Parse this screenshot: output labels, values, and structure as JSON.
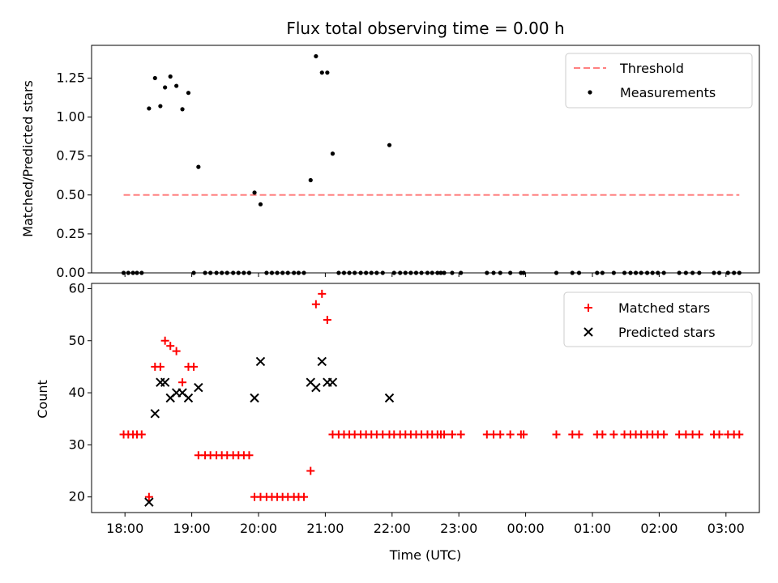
{
  "chart_data": [
    {
      "type": "scatter",
      "title": "Flux total observing time = 0.00 h",
      "xlabel": "",
      "ylabel": "Matched/Predicted stars",
      "xlim": [
        17.5,
        27.5
      ],
      "ylim": [
        0,
        1.46
      ],
      "grid": false,
      "legend_position": "top-right",
      "yticks": [
        "0.00",
        "0.25",
        "0.50",
        "0.75",
        "1.00",
        "1.25"
      ],
      "ytick_values": [
        0,
        0.25,
        0.5,
        0.75,
        1.0,
        1.25
      ],
      "threshold": {
        "name": "Threshold",
        "value": 0.5,
        "x_range": [
          17.98,
          27.2
        ],
        "color": "#ff8080"
      },
      "series": [
        {
          "name": "Measurements",
          "color": "#000000",
          "points": [
            [
              17.98,
              0
            ],
            [
              18.05,
              0
            ],
            [
              18.12,
              0
            ],
            [
              18.18,
              0
            ],
            [
              18.25,
              0
            ],
            [
              18.36,
              1.055
            ],
            [
              18.45,
              1.25
            ],
            [
              18.53,
              1.07
            ],
            [
              18.6,
              1.19
            ],
            [
              18.68,
              1.26
            ],
            [
              18.77,
              1.2
            ],
            [
              18.86,
              1.05
            ],
            [
              18.95,
              1.155
            ],
            [
              19.03,
              0
            ],
            [
              19.1,
              0.68
            ],
            [
              19.2,
              0
            ],
            [
              19.28,
              0
            ],
            [
              19.37,
              0
            ],
            [
              19.45,
              0
            ],
            [
              19.53,
              0
            ],
            [
              19.62,
              0
            ],
            [
              19.7,
              0
            ],
            [
              19.78,
              0
            ],
            [
              19.86,
              0
            ],
            [
              19.94,
              0.515
            ],
            [
              20.03,
              0.44
            ],
            [
              20.12,
              0
            ],
            [
              20.2,
              0
            ],
            [
              20.28,
              0
            ],
            [
              20.36,
              0
            ],
            [
              20.44,
              0
            ],
            [
              20.53,
              0
            ],
            [
              20.6,
              0
            ],
            [
              20.68,
              0
            ],
            [
              20.78,
              0.595
            ],
            [
              20.86,
              1.39
            ],
            [
              20.95,
              1.285
            ],
            [
              21.03,
              1.285
            ],
            [
              21.11,
              0.765
            ],
            [
              21.2,
              0
            ],
            [
              21.28,
              0
            ],
            [
              21.36,
              0
            ],
            [
              21.44,
              0
            ],
            [
              21.53,
              0
            ],
            [
              21.61,
              0
            ],
            [
              21.69,
              0
            ],
            [
              21.77,
              0
            ],
            [
              21.86,
              0
            ],
            [
              21.96,
              0.82
            ],
            [
              22.03,
              0
            ],
            [
              22.12,
              0
            ],
            [
              22.2,
              0
            ],
            [
              22.28,
              0
            ],
            [
              22.36,
              0
            ],
            [
              22.44,
              0
            ],
            [
              22.53,
              0
            ],
            [
              22.6,
              0
            ],
            [
              22.68,
              0
            ],
            [
              22.73,
              0
            ],
            [
              22.78,
              0
            ],
            [
              22.9,
              0
            ],
            [
              23.03,
              0
            ],
            [
              23.42,
              0
            ],
            [
              23.52,
              0
            ],
            [
              23.62,
              0
            ],
            [
              23.77,
              0
            ],
            [
              23.93,
              0
            ],
            [
              23.97,
              0
            ],
            [
              24.46,
              0
            ],
            [
              24.7,
              0
            ],
            [
              24.8,
              0
            ],
            [
              25.07,
              0
            ],
            [
              25.15,
              0
            ],
            [
              25.32,
              0
            ],
            [
              25.48,
              0
            ],
            [
              25.57,
              0
            ],
            [
              25.65,
              0
            ],
            [
              25.73,
              0
            ],
            [
              25.82,
              0
            ],
            [
              25.9,
              0
            ],
            [
              25.98,
              0
            ],
            [
              26.07,
              0
            ],
            [
              26.3,
              0
            ],
            [
              26.4,
              0
            ],
            [
              26.5,
              0
            ],
            [
              26.6,
              0
            ],
            [
              26.82,
              0
            ],
            [
              26.9,
              0
            ],
            [
              27.03,
              0
            ],
            [
              27.12,
              0
            ],
            [
              27.2,
              0
            ]
          ]
        }
      ]
    },
    {
      "type": "scatter",
      "title": "",
      "xlabel": "Time (UTC)",
      "ylabel": "Count",
      "xlim": [
        17.5,
        27.5
      ],
      "ylim": [
        17,
        61
      ],
      "grid": false,
      "legend_position": "top-right",
      "x_tick_values": [
        18,
        19,
        20,
        21,
        22,
        23,
        24,
        25,
        26,
        27
      ],
      "xticks": [
        "18:00",
        "19:00",
        "20:00",
        "21:00",
        "22:00",
        "23:00",
        "00:00",
        "01:00",
        "02:00",
        "03:00"
      ],
      "yticks": [
        "20",
        "30",
        "40",
        "50",
        "60"
      ],
      "ytick_values": [
        20,
        30,
        40,
        50,
        60
      ],
      "series": [
        {
          "name": "Matched stars",
          "marker": "plus",
          "color": "#ff0000",
          "points": [
            [
              17.98,
              32
            ],
            [
              18.05,
              32
            ],
            [
              18.12,
              32
            ],
            [
              18.18,
              32
            ],
            [
              18.25,
              32
            ],
            [
              18.36,
              20
            ],
            [
              18.45,
              45
            ],
            [
              18.53,
              45
            ],
            [
              18.6,
              50
            ],
            [
              18.68,
              49
            ],
            [
              18.77,
              48
            ],
            [
              18.86,
              42
            ],
            [
              18.95,
              45
            ],
            [
              19.03,
              45
            ],
            [
              19.1,
              28
            ],
            [
              19.2,
              28
            ],
            [
              19.28,
              28
            ],
            [
              19.37,
              28
            ],
            [
              19.45,
              28
            ],
            [
              19.53,
              28
            ],
            [
              19.62,
              28
            ],
            [
              19.7,
              28
            ],
            [
              19.78,
              28
            ],
            [
              19.86,
              28
            ],
            [
              19.94,
              20
            ],
            [
              20.03,
              20
            ],
            [
              20.12,
              20
            ],
            [
              20.2,
              20
            ],
            [
              20.28,
              20
            ],
            [
              20.36,
              20
            ],
            [
              20.44,
              20
            ],
            [
              20.53,
              20
            ],
            [
              20.6,
              20
            ],
            [
              20.68,
              20
            ],
            [
              20.78,
              25
            ],
            [
              20.86,
              57
            ],
            [
              20.95,
              59
            ],
            [
              21.03,
              54
            ],
            [
              21.11,
              32
            ],
            [
              21.2,
              32
            ],
            [
              21.28,
              32
            ],
            [
              21.36,
              32
            ],
            [
              21.44,
              32
            ],
            [
              21.53,
              32
            ],
            [
              21.61,
              32
            ],
            [
              21.69,
              32
            ],
            [
              21.77,
              32
            ],
            [
              21.86,
              32
            ],
            [
              21.96,
              32
            ],
            [
              22.03,
              32
            ],
            [
              22.12,
              32
            ],
            [
              22.2,
              32
            ],
            [
              22.28,
              32
            ],
            [
              22.36,
              32
            ],
            [
              22.44,
              32
            ],
            [
              22.53,
              32
            ],
            [
              22.6,
              32
            ],
            [
              22.68,
              32
            ],
            [
              22.73,
              32
            ],
            [
              22.78,
              32
            ],
            [
              22.9,
              32
            ],
            [
              23.03,
              32
            ],
            [
              23.42,
              32
            ],
            [
              23.52,
              32
            ],
            [
              23.62,
              32
            ],
            [
              23.77,
              32
            ],
            [
              23.93,
              32
            ],
            [
              23.97,
              32
            ],
            [
              24.46,
              32
            ],
            [
              24.7,
              32
            ],
            [
              24.8,
              32
            ],
            [
              25.07,
              32
            ],
            [
              25.15,
              32
            ],
            [
              25.32,
              32
            ],
            [
              25.48,
              32
            ],
            [
              25.57,
              32
            ],
            [
              25.65,
              32
            ],
            [
              25.73,
              32
            ],
            [
              25.82,
              32
            ],
            [
              25.9,
              32
            ],
            [
              25.98,
              32
            ],
            [
              26.07,
              32
            ],
            [
              26.3,
              32
            ],
            [
              26.4,
              32
            ],
            [
              26.5,
              32
            ],
            [
              26.6,
              32
            ],
            [
              26.82,
              32
            ],
            [
              26.9,
              32
            ],
            [
              27.03,
              32
            ],
            [
              27.12,
              32
            ],
            [
              27.2,
              32
            ]
          ]
        },
        {
          "name": "Predicted stars",
          "marker": "x",
          "color": "#000000",
          "points": [
            [
              18.36,
              19
            ],
            [
              18.45,
              36
            ],
            [
              18.53,
              42
            ],
            [
              18.6,
              42
            ],
            [
              18.68,
              39
            ],
            [
              18.77,
              40
            ],
            [
              18.86,
              40
            ],
            [
              18.95,
              39
            ],
            [
              19.1,
              41
            ],
            [
              19.94,
              39
            ],
            [
              20.03,
              46
            ],
            [
              20.78,
              42
            ],
            [
              20.86,
              41
            ],
            [
              20.95,
              46
            ],
            [
              21.03,
              42
            ],
            [
              21.11,
              42
            ],
            [
              21.96,
              39
            ]
          ]
        }
      ]
    }
  ]
}
